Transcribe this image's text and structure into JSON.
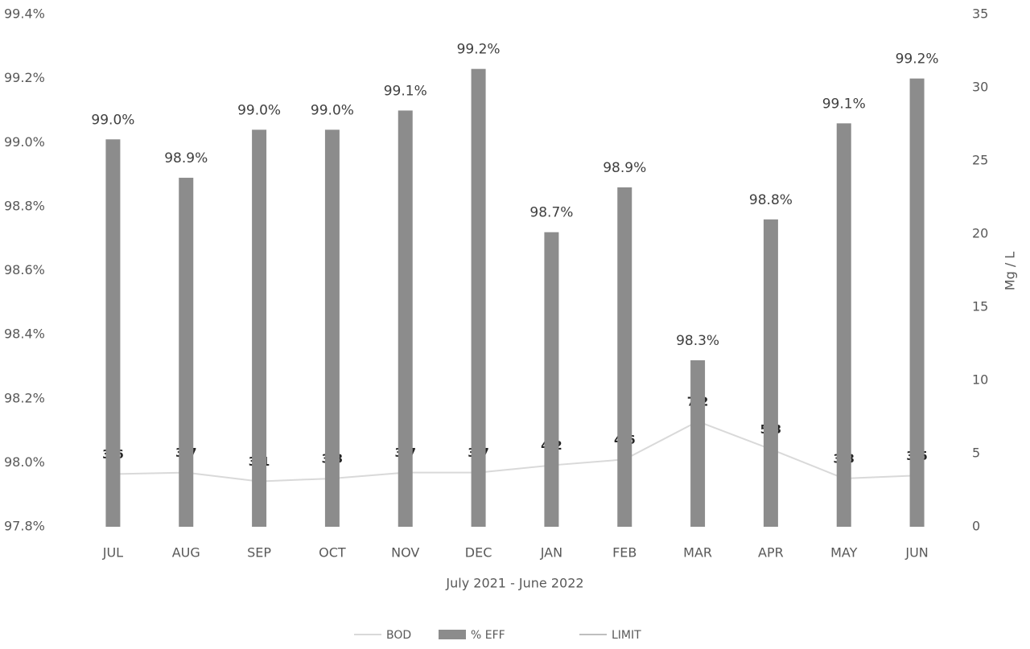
{
  "chart_data": {
    "type": "bar",
    "x_label": "July 2021 - June 2022",
    "y2_label": "Mg / L",
    "categories": [
      "JUL",
      "AUG",
      "SEP",
      "OCT",
      "NOV",
      "DEC",
      "JAN",
      "FEB",
      "MAR",
      "APR",
      "MAY",
      "JUN"
    ],
    "series": [
      {
        "name": "BOD",
        "type": "line",
        "axis": "y2",
        "color": "#d9d9d9",
        "values": [
          3.6,
          3.7,
          3.1,
          3.3,
          3.7,
          3.7,
          4.2,
          4.6,
          7.2,
          5.3,
          3.3,
          3.5
        ]
      },
      {
        "name": "% EFF",
        "type": "bar",
        "color": "#8c8c8c",
        "values": [
          99.01,
          98.89,
          99.04,
          99.04,
          99.1,
          99.23,
          98.72,
          98.86,
          98.32,
          98.76,
          99.06,
          99.2
        ],
        "value_labels": [
          "99.0%",
          "98.9%",
          "99.0%",
          "99.0%",
          "99.1%",
          "99.2%",
          "98.7%",
          "98.9%",
          "98.3%",
          "98.8%",
          "99.1%",
          "99.2%"
        ]
      },
      {
        "name": "LIMIT",
        "type": "line",
        "axis": "y2",
        "color": "#bfbfbf",
        "values": [
          null,
          null,
          null,
          null,
          null,
          null,
          null,
          null,
          null,
          null,
          null,
          null
        ]
      }
    ],
    "ylim": [
      97.8,
      99.4
    ],
    "yticks": [
      {
        "value": 97.8,
        "label": "97.8%"
      },
      {
        "value": 98.0,
        "label": "98.0%"
      },
      {
        "value": 98.2,
        "label": "98.2%"
      },
      {
        "value": 98.4,
        "label": "98.4%"
      },
      {
        "value": 98.6,
        "label": "98.6%"
      },
      {
        "value": 98.8,
        "label": "98.8%"
      },
      {
        "value": 99.0,
        "label": "99.0%"
      },
      {
        "value": 99.2,
        "label": "99.2%"
      },
      {
        "value": 99.4,
        "label": "99.4%"
      }
    ],
    "y2lim": [
      0,
      35
    ],
    "y2ticks": [
      0,
      5,
      10,
      15,
      20,
      25,
      30,
      35
    ],
    "grid": false,
    "legend": "bottom"
  }
}
